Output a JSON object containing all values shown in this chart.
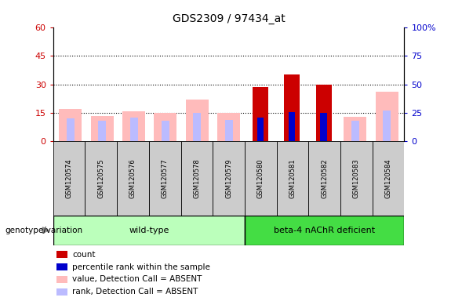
{
  "title": "GDS2309 / 97434_at",
  "samples": [
    "GSM120574",
    "GSM120575",
    "GSM120576",
    "GSM120577",
    "GSM120578",
    "GSM120579",
    "GSM120580",
    "GSM120581",
    "GSM120582",
    "GSM120583",
    "GSM120584"
  ],
  "count_values": [
    0,
    0,
    0,
    0,
    0,
    0,
    28.5,
    35,
    30,
    0,
    0
  ],
  "percentile_rank": [
    0,
    0,
    0,
    0,
    0,
    0,
    21,
    26,
    25,
    0,
    0
  ],
  "value_absent": [
    17,
    13.5,
    16,
    15,
    22,
    15,
    0,
    0,
    0,
    13,
    26
  ],
  "rank_absent": [
    20,
    18,
    21,
    18,
    25,
    19,
    0,
    0,
    0,
    18,
    27
  ],
  "left_y_ticks": [
    0,
    15,
    30,
    45,
    60
  ],
  "right_y_ticks": [
    0,
    25,
    50,
    75,
    100
  ],
  "left_ylim": [
    0,
    60
  ],
  "right_ylim": [
    0,
    100
  ],
  "n_wt": 6,
  "n_b4": 5,
  "group_label_wt": "wild-type",
  "group_label_b4": "beta-4 nAChR deficient",
  "genotype_label": "genotype/variation",
  "color_count": "#cc0000",
  "color_percentile": "#0000cc",
  "color_value_absent": "#ffbbbb",
  "color_rank_absent": "#bbbbff",
  "color_wt_bg": "#bbffbb",
  "color_b4_bg": "#44dd44",
  "color_sample_bg": "#cccccc",
  "bar_width": 0.45,
  "legend_items": [
    [
      "#cc0000",
      "count"
    ],
    [
      "#0000cc",
      "percentile rank within the sample"
    ],
    [
      "#ffbbbb",
      "value, Detection Call = ABSENT"
    ],
    [
      "#bbbbff",
      "rank, Detection Call = ABSENT"
    ]
  ]
}
